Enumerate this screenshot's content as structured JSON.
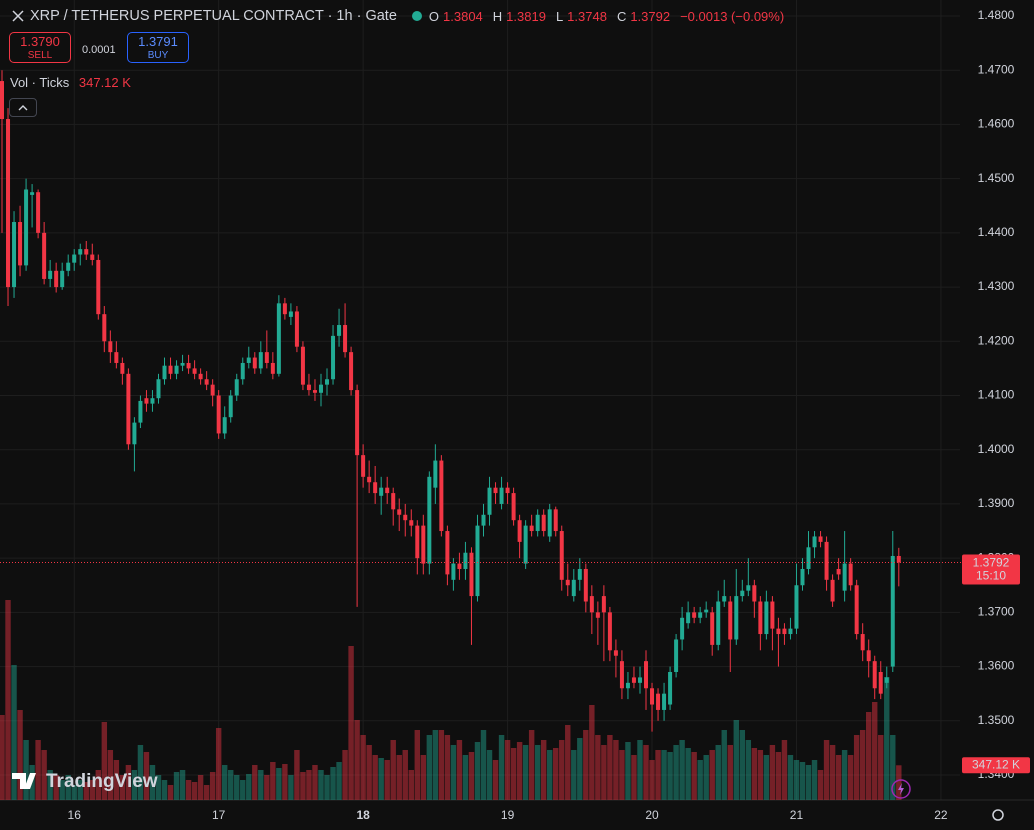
{
  "chart_data": {
    "type": "candlestick",
    "title": "XRP / TETHERUS PERPETUAL CONTRACT · 1h · Gate",
    "ohlc_labels": [
      "O",
      "H",
      "L",
      "C"
    ],
    "change_label": "−0.0013 (−0.09%)",
    "sell_label": "SELL",
    "sell_price": "1.3790",
    "buy_label": "BUY",
    "buy_price": "1.3791",
    "spread": "0.0001",
    "volume_title": "Vol · Ticks",
    "volume_label": "347.12 K",
    "countdown": "15:10",
    "watermark": "TradingView",
    "up_color": "#22ab94",
    "down_color": "#f23645",
    "grid": true,
    "ylim": [
      1.34,
      1.48
    ],
    "yticks": [
      {
        "value": 1.48,
        "label": "1.4800"
      },
      {
        "value": 1.47,
        "label": "1.4700"
      },
      {
        "value": 1.46,
        "label": "1.4600"
      },
      {
        "value": 1.45,
        "label": "1.4500"
      },
      {
        "value": 1.44,
        "label": "1.4400"
      },
      {
        "value": 1.43,
        "label": "1.4300"
      },
      {
        "value": 1.42,
        "label": "1.4200"
      },
      {
        "value": 1.41,
        "label": "1.4100"
      },
      {
        "value": 1.4,
        "label": "1.4000"
      },
      {
        "value": 1.39,
        "label": "1.3900"
      },
      {
        "value": 1.38,
        "label": "1.3800"
      },
      {
        "value": 1.37,
        "label": "1.3700"
      },
      {
        "value": 1.36,
        "label": "1.3600"
      },
      {
        "value": 1.35,
        "label": "1.3500"
      },
      {
        "value": 1.34,
        "label": "1.3400"
      }
    ],
    "xlim": [
      0,
      160
    ],
    "xticks": [
      {
        "value": 12,
        "label": "16"
      },
      {
        "value": 36,
        "label": "17"
      },
      {
        "value": 60,
        "label": "18"
      },
      {
        "value": 84,
        "label": "19"
      },
      {
        "value": 108,
        "label": "20"
      },
      {
        "value": 132,
        "label": "21"
      },
      {
        "value": 156,
        "label": "22"
      }
    ],
    "candles": [
      [
        1.468,
        1.47,
        1.44,
        1.461
      ],
      [
        1.461,
        1.463,
        1.4265,
        1.43
      ],
      [
        1.43,
        1.444,
        1.428,
        1.442
      ],
      [
        1.442,
        1.445,
        1.432,
        1.434
      ],
      [
        1.434,
        1.45,
        1.433,
        1.448
      ],
      [
        1.447,
        1.449,
        1.441,
        1.4475
      ],
      [
        1.4475,
        1.448,
        1.439,
        1.44
      ],
      [
        1.44,
        1.442,
        1.4305,
        1.4315
      ],
      [
        1.4315,
        1.435,
        1.43,
        1.433
      ],
      [
        1.433,
        1.4345,
        1.429,
        1.43
      ],
      [
        1.43,
        1.4345,
        1.4295,
        1.433
      ],
      [
        1.433,
        1.436,
        1.432,
        1.4345
      ],
      [
        1.4345,
        1.437,
        1.433,
        1.436
      ],
      [
        1.436,
        1.438,
        1.434,
        1.437
      ],
      [
        1.437,
        1.4385,
        1.435,
        1.436
      ],
      [
        1.436,
        1.438,
        1.434,
        1.435
      ],
      [
        1.435,
        1.436,
        1.424,
        1.425
      ],
      [
        1.425,
        1.4265,
        1.418,
        1.42
      ],
      [
        1.42,
        1.422,
        1.416,
        1.418
      ],
      [
        1.418,
        1.42,
        1.415,
        1.416
      ],
      [
        1.416,
        1.417,
        1.412,
        1.414
      ],
      [
        1.414,
        1.415,
        1.4,
        1.401
      ],
      [
        1.401,
        1.406,
        1.396,
        1.405
      ],
      [
        1.405,
        1.41,
        1.404,
        1.409
      ],
      [
        1.4095,
        1.411,
        1.407,
        1.4085
      ],
      [
        1.4085,
        1.411,
        1.407,
        1.4095
      ],
      [
        1.4095,
        1.414,
        1.4085,
        1.413
      ],
      [
        1.413,
        1.417,
        1.412,
        1.4155
      ],
      [
        1.4155,
        1.417,
        1.413,
        1.414
      ],
      [
        1.414,
        1.4165,
        1.413,
        1.4155
      ],
      [
        1.4155,
        1.4175,
        1.4145,
        1.416
      ],
      [
        1.416,
        1.4175,
        1.414,
        1.415
      ],
      [
        1.415,
        1.4165,
        1.413,
        1.414
      ],
      [
        1.414,
        1.415,
        1.412,
        1.413
      ],
      [
        1.413,
        1.4145,
        1.411,
        1.412
      ],
      [
        1.412,
        1.413,
        1.408,
        1.41
      ],
      [
        1.41,
        1.411,
        1.402,
        1.403
      ],
      [
        1.403,
        1.408,
        1.402,
        1.406
      ],
      [
        1.406,
        1.411,
        1.405,
        1.41
      ],
      [
        1.41,
        1.414,
        1.409,
        1.413
      ],
      [
        1.413,
        1.417,
        1.412,
        1.416
      ],
      [
        1.416,
        1.419,
        1.415,
        1.417
      ],
      [
        1.417,
        1.418,
        1.414,
        1.415
      ],
      [
        1.415,
        1.42,
        1.414,
        1.418
      ],
      [
        1.418,
        1.422,
        1.415,
        1.416
      ],
      [
        1.416,
        1.418,
        1.413,
        1.414
      ],
      [
        1.414,
        1.4285,
        1.4135,
        1.427
      ],
      [
        1.427,
        1.428,
        1.424,
        1.425
      ],
      [
        1.4245,
        1.427,
        1.423,
        1.4255
      ],
      [
        1.4255,
        1.4265,
        1.418,
        1.419
      ],
      [
        1.419,
        1.42,
        1.411,
        1.412
      ],
      [
        1.412,
        1.414,
        1.41,
        1.411
      ],
      [
        1.411,
        1.413,
        1.409,
        1.4105
      ],
      [
        1.4105,
        1.414,
        1.408,
        1.412
      ],
      [
        1.412,
        1.415,
        1.41,
        1.413
      ],
      [
        1.413,
        1.423,
        1.412,
        1.421
      ],
      [
        1.421,
        1.426,
        1.419,
        1.423
      ],
      [
        1.423,
        1.427,
        1.417,
        1.418
      ],
      [
        1.418,
        1.419,
        1.41,
        1.411
      ],
      [
        1.411,
        1.412,
        1.371,
        1.399
      ],
      [
        1.399,
        1.401,
        1.393,
        1.395
      ],
      [
        1.395,
        1.398,
        1.392,
        1.394
      ],
      [
        1.394,
        1.397,
        1.39,
        1.392
      ],
      [
        1.3915,
        1.395,
        1.388,
        1.393
      ],
      [
        1.393,
        1.395,
        1.39,
        1.392
      ],
      [
        1.392,
        1.393,
        1.386,
        1.389
      ],
      [
        1.389,
        1.391,
        1.385,
        1.388
      ],
      [
        1.388,
        1.39,
        1.384,
        1.387
      ],
      [
        1.387,
        1.389,
        1.384,
        1.386
      ],
      [
        1.386,
        1.387,
        1.377,
        1.38
      ],
      [
        1.386,
        1.388,
        1.377,
        1.379
      ],
      [
        1.379,
        1.396,
        1.377,
        1.395
      ],
      [
        1.393,
        1.401,
        1.39,
        1.398
      ],
      [
        1.398,
        1.399,
        1.384,
        1.385
      ],
      [
        1.385,
        1.386,
        1.375,
        1.377
      ],
      [
        1.376,
        1.38,
        1.374,
        1.379
      ],
      [
        1.379,
        1.381,
        1.376,
        1.378
      ],
      [
        1.378,
        1.383,
        1.376,
        1.381
      ],
      [
        1.381,
        1.382,
        1.364,
        1.373
      ],
      [
        1.373,
        1.388,
        1.372,
        1.386
      ],
      [
        1.386,
        1.39,
        1.384,
        1.388
      ],
      [
        1.388,
        1.395,
        1.386,
        1.393
      ],
      [
        1.393,
        1.394,
        1.39,
        1.392
      ],
      [
        1.39,
        1.395,
        1.389,
        1.393
      ],
      [
        1.393,
        1.394,
        1.39,
        1.392
      ],
      [
        1.392,
        1.393,
        1.386,
        1.387
      ],
      [
        1.387,
        1.388,
        1.38,
        1.383
      ],
      [
        1.379,
        1.387,
        1.378,
        1.386
      ],
      [
        1.386,
        1.388,
        1.384,
        1.385
      ],
      [
        1.385,
        1.389,
        1.384,
        1.388
      ],
      [
        1.388,
        1.389,
        1.384,
        1.385
      ],
      [
        1.384,
        1.39,
        1.383,
        1.389
      ],
      [
        1.389,
        1.3895,
        1.384,
        1.385
      ],
      [
        1.385,
        1.386,
        1.374,
        1.376
      ],
      [
        1.376,
        1.379,
        1.373,
        1.375
      ],
      [
        1.373,
        1.378,
        1.372,
        1.376
      ],
      [
        1.376,
        1.38,
        1.374,
        1.378
      ],
      [
        1.378,
        1.379,
        1.37,
        1.372
      ],
      [
        1.373,
        1.375,
        1.366,
        1.37
      ],
      [
        1.37,
        1.372,
        1.364,
        1.369
      ],
      [
        1.373,
        1.375,
        1.361,
        1.37
      ],
      [
        1.37,
        1.371,
        1.361,
        1.363
      ],
      [
        1.363,
        1.365,
        1.358,
        1.362
      ],
      [
        1.361,
        1.363,
        1.354,
        1.356
      ],
      [
        1.356,
        1.359,
        1.354,
        1.357
      ],
      [
        1.358,
        1.36,
        1.356,
        1.357
      ],
      [
        1.357,
        1.36,
        1.355,
        1.358
      ],
      [
        1.361,
        1.363,
        1.352,
        1.356
      ],
      [
        1.356,
        1.357,
        1.348,
        1.353
      ],
      [
        1.355,
        1.356,
        1.35,
        1.352
      ],
      [
        1.352,
        1.357,
        1.35,
        1.355
      ],
      [
        1.353,
        1.36,
        1.352,
        1.359
      ],
      [
        1.359,
        1.366,
        1.358,
        1.365
      ],
      [
        1.365,
        1.371,
        1.363,
        1.369
      ],
      [
        1.368,
        1.372,
        1.367,
        1.37
      ],
      [
        1.37,
        1.371,
        1.368,
        1.369
      ],
      [
        1.369,
        1.371,
        1.368,
        1.37
      ],
      [
        1.37,
        1.372,
        1.369,
        1.3705
      ],
      [
        1.37,
        1.371,
        1.362,
        1.364
      ],
      [
        1.364,
        1.374,
        1.363,
        1.372
      ],
      [
        1.372,
        1.376,
        1.371,
        1.373
      ],
      [
        1.372,
        1.373,
        1.359,
        1.365
      ],
      [
        1.365,
        1.378,
        1.364,
        1.373
      ],
      [
        1.373,
        1.376,
        1.372,
        1.374
      ],
      [
        1.374,
        1.38,
        1.373,
        1.375
      ],
      [
        1.375,
        1.376,
        1.369,
        1.372
      ],
      [
        1.372,
        1.373,
        1.363,
        1.366
      ],
      [
        1.366,
        1.374,
        1.365,
        1.372
      ],
      [
        1.372,
        1.373,
        1.363,
        1.367
      ],
      [
        1.367,
        1.369,
        1.36,
        1.366
      ],
      [
        1.367,
        1.368,
        1.364,
        1.366
      ],
      [
        1.366,
        1.369,
        1.365,
        1.367
      ],
      [
        1.367,
        1.379,
        1.366,
        1.375
      ],
      [
        1.375,
        1.38,
        1.374,
        1.378
      ],
      [
        1.378,
        1.385,
        1.377,
        1.382
      ],
      [
        1.382,
        1.385,
        1.38,
        1.384
      ],
      [
        1.384,
        1.385,
        1.382,
        1.383
      ],
      [
        1.383,
        1.384,
        1.374,
        1.376
      ],
      [
        1.376,
        1.377,
        1.371,
        1.372
      ],
      [
        1.378,
        1.38,
        1.376,
        1.377
      ],
      [
        1.374,
        1.385,
        1.372,
        1.379
      ],
      [
        1.379,
        1.38,
        1.374,
        1.375
      ],
      [
        1.375,
        1.376,
        1.365,
        1.366
      ],
      [
        1.366,
        1.368,
        1.361,
        1.363
      ],
      [
        1.363,
        1.365,
        1.358,
        1.361
      ],
      [
        1.361,
        1.362,
        1.354,
        1.356
      ],
      [
        1.359,
        1.361,
        1.354,
        1.355
      ],
      [
        1.357,
        1.36,
        1.356,
        1.358
      ],
      [
        1.36,
        1.385,
        1.359,
        1.3804
      ],
      [
        1.3804,
        1.3819,
        1.3748,
        1.3792
      ]
    ],
    "volumes": [
      850,
      2000,
      1350,
      900,
      600,
      350,
      600,
      500,
      300,
      250,
      200,
      250,
      150,
      200,
      180,
      200,
      300,
      780,
      500,
      400,
      250,
      350,
      300,
      550,
      480,
      350,
      250,
      200,
      150,
      280,
      300,
      200,
      180,
      250,
      150,
      280,
      720,
      350,
      300,
      250,
      200,
      260,
      350,
      300,
      250,
      380,
      320,
      360,
      250,
      500,
      280,
      300,
      350,
      300,
      250,
      330,
      380,
      500,
      1540,
      800,
      650,
      550,
      450,
      420,
      400,
      600,
      450,
      500,
      300,
      700,
      450,
      650,
      700,
      700,
      650,
      550,
      600,
      450,
      480,
      580,
      700,
      500,
      400,
      650,
      600,
      520,
      580,
      550,
      700,
      550,
      600,
      500,
      520,
      600,
      750,
      500,
      620,
      700,
      950,
      650,
      550,
      650,
      600,
      500,
      580,
      450,
      600,
      550,
      400,
      500,
      500,
      480,
      550,
      600,
      520,
      480,
      400,
      450,
      500,
      550,
      700,
      550,
      800,
      700,
      600,
      520,
      500,
      450,
      550,
      480,
      600,
      450,
      400,
      380,
      350,
      400,
      300,
      600,
      550,
      450,
      500,
      450,
      650,
      700,
      880,
      980,
      650,
      1230,
      650,
      347.12
    ]
  }
}
